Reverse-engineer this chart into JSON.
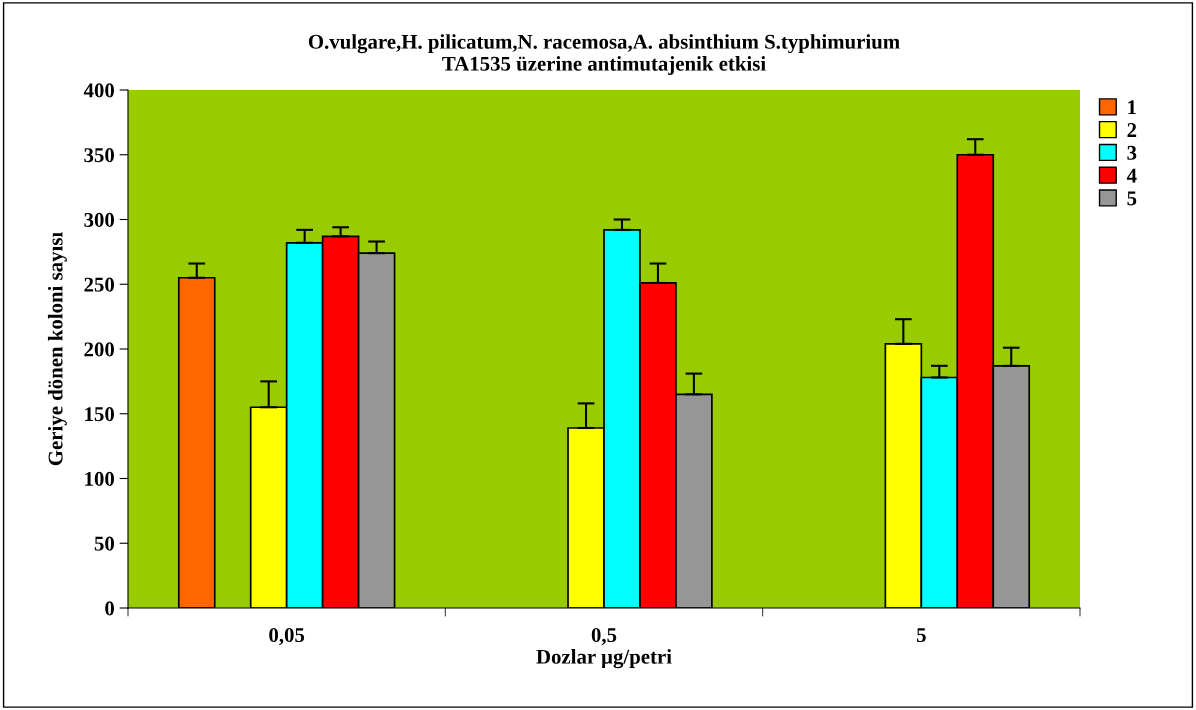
{
  "chart_data": {
    "type": "bar",
    "title": "O.vulgare,H. pilicatum,N. racemosa,A. absinthium S.typhimurium\nTA1535 üzerine antimutajenik etkisi",
    "xlabel": "Dozlar µg/petri",
    "ylabel": "Geriye dönen koloni sayısı",
    "categories": [
      "0,05",
      "0,5",
      "5"
    ],
    "series": [
      {
        "name": "1",
        "color": "#ff6600",
        "values": [
          255,
          null,
          null
        ],
        "errors": [
          [
            255,
            266
          ],
          null,
          null
        ]
      },
      {
        "name": "2",
        "color": "#ffff00",
        "values": [
          155,
          139,
          204
        ],
        "errors": [
          [
            155,
            175
          ],
          [
            139,
            158
          ],
          [
            204,
            223
          ]
        ]
      },
      {
        "name": "3",
        "color": "#00ffff",
        "values": [
          282,
          292,
          178
        ],
        "errors": [
          [
            282,
            292
          ],
          [
            292,
            300
          ],
          [
            178,
            187
          ]
        ]
      },
      {
        "name": "4",
        "color": "#ff0000",
        "values": [
          287,
          251,
          350
        ],
        "errors": [
          [
            287,
            294
          ],
          [
            251,
            266
          ],
          [
            350,
            362
          ]
        ]
      },
      {
        "name": "5",
        "color": "#969696",
        "values": [
          274,
          165,
          187
        ],
        "errors": [
          [
            274,
            283
          ],
          [
            165,
            181
          ],
          [
            187,
            201
          ]
        ]
      }
    ],
    "ylim": [
      0,
      400
    ],
    "yticks": [
      0,
      50,
      100,
      150,
      200,
      250,
      300,
      350,
      400
    ],
    "grid": false,
    "legend": "top right"
  }
}
